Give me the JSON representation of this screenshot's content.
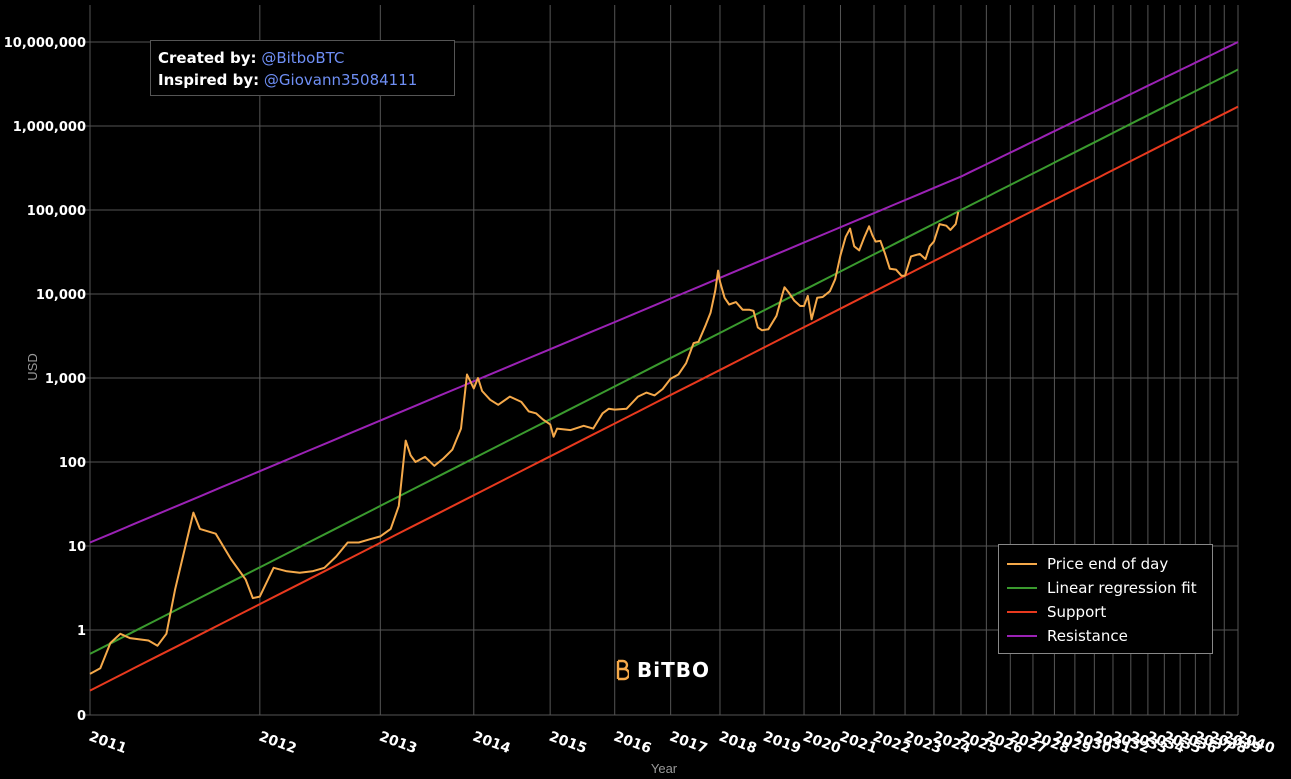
{
  "credits": {
    "created_label": "Created by:",
    "created_handle": "@BitboBTC",
    "inspired_label": "Inspired by:",
    "inspired_handle": "@Giovann35084111"
  },
  "logo": {
    "text": "BiTBO"
  },
  "colors": {
    "price": "#f5a94a",
    "regression": "#3a9a2e",
    "support": "#e8391e",
    "resistance": "#9b22b5",
    "grid": "#555555",
    "text": "#ffffff",
    "axis_title": "#999999"
  },
  "chart_data": {
    "type": "line",
    "title": "",
    "xlabel": "Year",
    "ylabel": "USD",
    "y_scale": "log",
    "grid": true,
    "legend_position": "bottom-right",
    "ylim_label_range": [
      0,
      10000000
    ],
    "y_ticks": [
      {
        "value": 0,
        "label": "0"
      },
      {
        "value": 1,
        "label": "1"
      },
      {
        "value": 10,
        "label": "10"
      },
      {
        "value": 100,
        "label": "100"
      },
      {
        "value": 1000,
        "label": "1,000"
      },
      {
        "value": 10000,
        "label": "10,000"
      },
      {
        "value": 100000,
        "label": "100,000"
      },
      {
        "value": 1000000,
        "label": "1,000,000"
      },
      {
        "value": 10000000,
        "label": "10,000,000"
      }
    ],
    "x_ticks": [
      "2011",
      "2012",
      "2013",
      "2014",
      "2015",
      "2016",
      "2017",
      "2018",
      "2019",
      "2020",
      "2021",
      "2022",
      "2023",
      "2024",
      "2025",
      "2026",
      "2027",
      "2028",
      "2029",
      "2030",
      "2031",
      "2032",
      "2033",
      "2034",
      "2035",
      "2036",
      "2037",
      "2038",
      "2039",
      "2040"
    ],
    "series": [
      {
        "name": "Price end of day",
        "color": "#f5a94a",
        "points": [
          [
            2011.0,
            0.3
          ],
          [
            2011.05,
            0.35
          ],
          [
            2011.1,
            0.7
          ],
          [
            2011.15,
            0.9
          ],
          [
            2011.2,
            0.8
          ],
          [
            2011.3,
            0.75
          ],
          [
            2011.35,
            0.65
          ],
          [
            2011.4,
            0.9
          ],
          [
            2011.45,
            3.0
          ],
          [
            2011.5,
            8.0
          ],
          [
            2011.56,
            25
          ],
          [
            2011.6,
            16
          ],
          [
            2011.7,
            14
          ],
          [
            2011.8,
            7
          ],
          [
            2011.9,
            4
          ],
          [
            2011.95,
            2.4
          ],
          [
            2012.0,
            2.5
          ],
          [
            2012.1,
            5.5
          ],
          [
            2012.2,
            5.0
          ],
          [
            2012.3,
            4.8
          ],
          [
            2012.4,
            5.0
          ],
          [
            2012.5,
            5.5
          ],
          [
            2012.6,
            7.5
          ],
          [
            2012.7,
            11
          ],
          [
            2012.8,
            11
          ],
          [
            2012.9,
            12
          ],
          [
            2013.0,
            13
          ],
          [
            2013.1,
            16
          ],
          [
            2013.18,
            30
          ],
          [
            2013.25,
            180
          ],
          [
            2013.3,
            120
          ],
          [
            2013.35,
            100
          ],
          [
            2013.45,
            115
          ],
          [
            2013.55,
            90
          ],
          [
            2013.65,
            110
          ],
          [
            2013.75,
            140
          ],
          [
            2013.85,
            250
          ],
          [
            2013.92,
            1100
          ],
          [
            2014.0,
            750
          ],
          [
            2014.05,
            1000
          ],
          [
            2014.1,
            700
          ],
          [
            2014.2,
            550
          ],
          [
            2014.3,
            480
          ],
          [
            2014.45,
            600
          ],
          [
            2014.6,
            520
          ],
          [
            2014.7,
            400
          ],
          [
            2014.8,
            380
          ],
          [
            2014.9,
            320
          ],
          [
            2015.0,
            280
          ],
          [
            2015.05,
            200
          ],
          [
            2015.1,
            250
          ],
          [
            2015.3,
            240
          ],
          [
            2015.5,
            270
          ],
          [
            2015.65,
            250
          ],
          [
            2015.8,
            380
          ],
          [
            2015.9,
            430
          ],
          [
            2016.0,
            420
          ],
          [
            2016.2,
            430
          ],
          [
            2016.4,
            600
          ],
          [
            2016.55,
            670
          ],
          [
            2016.7,
            620
          ],
          [
            2016.85,
            740
          ],
          [
            2017.0,
            980
          ],
          [
            2017.15,
            1100
          ],
          [
            2017.3,
            1500
          ],
          [
            2017.45,
            2600
          ],
          [
            2017.55,
            2700
          ],
          [
            2017.7,
            4300
          ],
          [
            2017.8,
            6000
          ],
          [
            2017.9,
            11000
          ],
          [
            2017.96,
            19000
          ],
          [
            2018.0,
            14000
          ],
          [
            2018.1,
            9000
          ],
          [
            2018.2,
            7500
          ],
          [
            2018.35,
            8000
          ],
          [
            2018.5,
            6500
          ],
          [
            2018.65,
            6500
          ],
          [
            2018.75,
            6300
          ],
          [
            2018.85,
            4000
          ],
          [
            2018.95,
            3700
          ],
          [
            2019.1,
            3800
          ],
          [
            2019.3,
            5500
          ],
          [
            2019.45,
            10000
          ],
          [
            2019.5,
            12000
          ],
          [
            2019.6,
            10500
          ],
          [
            2019.75,
            8300
          ],
          [
            2019.9,
            7200
          ],
          [
            2020.0,
            7200
          ],
          [
            2020.1,
            9500
          ],
          [
            2020.2,
            5000
          ],
          [
            2020.35,
            9000
          ],
          [
            2020.5,
            9200
          ],
          [
            2020.7,
            10800
          ],
          [
            2020.85,
            15000
          ],
          [
            2021.0,
            29000
          ],
          [
            2021.15,
            48000
          ],
          [
            2021.28,
            60000
          ],
          [
            2021.4,
            37000
          ],
          [
            2021.55,
            33000
          ],
          [
            2021.7,
            47000
          ],
          [
            2021.85,
            64000
          ],
          [
            2021.95,
            50000
          ],
          [
            2022.05,
            42000
          ],
          [
            2022.2,
            43000
          ],
          [
            2022.35,
            30000
          ],
          [
            2022.5,
            20000
          ],
          [
            2022.7,
            19500
          ],
          [
            2022.88,
            16500
          ],
          [
            2023.0,
            16500
          ],
          [
            2023.2,
            28000
          ],
          [
            2023.5,
            30000
          ],
          [
            2023.7,
            26000
          ],
          [
            2023.85,
            37000
          ],
          [
            2024.0,
            42000
          ],
          [
            2024.2,
            68000
          ],
          [
            2024.45,
            65000
          ],
          [
            2024.6,
            58000
          ],
          [
            2024.8,
            68000
          ],
          [
            2024.9,
            95000
          ]
        ]
      },
      {
        "name": "Linear regression fit",
        "color": "#3a9a2e",
        "points": [
          [
            2011.0,
            0.52
          ],
          [
            2025.0,
            100000
          ],
          [
            2040.0,
            4700000
          ]
        ]
      },
      {
        "name": "Support",
        "color": "#e8391e",
        "points": [
          [
            2011.0,
            0.19
          ],
          [
            2025.0,
            36000
          ],
          [
            2040.0,
            1700000
          ]
        ]
      },
      {
        "name": "Resistance",
        "color": "#9b22b5",
        "points": [
          [
            2011.0,
            11
          ],
          [
            2025.0,
            250000
          ],
          [
            2040.0,
            10000000
          ]
        ]
      }
    ]
  }
}
